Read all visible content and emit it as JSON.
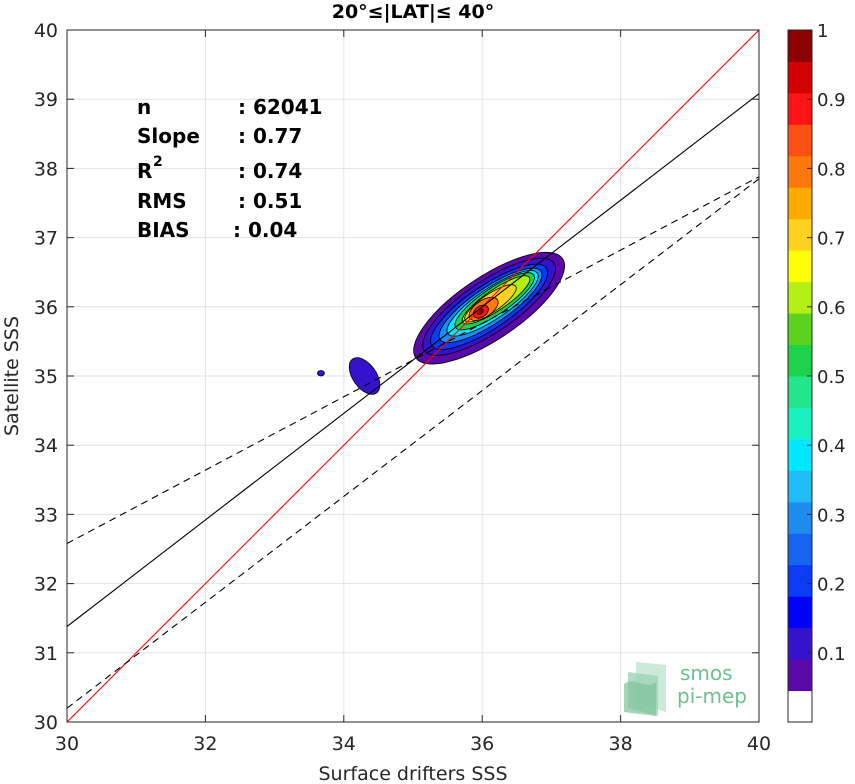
{
  "chart_data": {
    "type": "heatmap",
    "title": "20°≤|LAT|≤ 40°",
    "xlabel": "Surface drifters SSS",
    "ylabel": "Satellite SSS",
    "xlim": [
      30,
      40
    ],
    "ylim": [
      30,
      40
    ],
    "xticks": [
      "30",
      "32",
      "34",
      "36",
      "38",
      "40"
    ],
    "yticks": [
      "30",
      "31",
      "32",
      "33",
      "34",
      "35",
      "36",
      "37",
      "38",
      "39",
      "40"
    ],
    "grid": true,
    "stats": {
      "n": {
        "label": "n",
        "value": ": 62041"
      },
      "slope": {
        "label": "Slope",
        "value": ": 0.77"
      },
      "r2": {
        "label": "R",
        "sup": "2",
        "value": ": 0.74"
      },
      "rms": {
        "label": "RMS",
        "value": ": 0.51"
      },
      "bias": {
        "label": "BIAS",
        "value": ": 0.04"
      }
    },
    "lines": {
      "identity": {
        "color": "#ff0000",
        "y_at_30": 30,
        "slope": 1
      },
      "fit": {
        "color": "#000000",
        "y_at_30": 31.38,
        "slope": 0.77
      },
      "fit_upper": {
        "color": "#000000",
        "dashed": true,
        "y_at_30": 32.58,
        "slope": 0.53
      },
      "fit_lower": {
        "color": "#000000",
        "dashed": true,
        "y_at_30": 30.2,
        "slope": 0.765
      }
    },
    "density_peak": {
      "x": 35.98,
      "y": 35.93
    },
    "density_regions": [
      {
        "level": 0.05,
        "cx": 36.1,
        "cy": 35.98,
        "rx": 1.28,
        "ry": 0.45,
        "angle_deg": 34
      },
      {
        "level": 0.1,
        "cx": 36.1,
        "cy": 36.0,
        "rx": 1.13,
        "ry": 0.37,
        "angle_deg": 34
      },
      {
        "level": 0.2,
        "cx": 36.1,
        "cy": 36.0,
        "rx": 1.0,
        "ry": 0.31,
        "angle_deg": 34
      },
      {
        "level": 0.3,
        "cx": 36.12,
        "cy": 36.02,
        "rx": 0.88,
        "ry": 0.26,
        "angle_deg": 34
      },
      {
        "level": 0.4,
        "cx": 36.15,
        "cy": 36.05,
        "rx": 0.78,
        "ry": 0.22,
        "angle_deg": 34
      },
      {
        "level": 0.5,
        "cx": 36.18,
        "cy": 36.08,
        "rx": 0.68,
        "ry": 0.19,
        "angle_deg": 34
      },
      {
        "level": 0.6,
        "cx": 36.2,
        "cy": 36.1,
        "rx": 0.58,
        "ry": 0.15,
        "angle_deg": 34
      },
      {
        "level": 0.7,
        "cx": 36.12,
        "cy": 36.05,
        "rx": 0.44,
        "ry": 0.13,
        "angle_deg": 34
      },
      {
        "level": 0.8,
        "cx": 36.02,
        "cy": 35.97,
        "rx": 0.24,
        "ry": 0.12,
        "angle_deg": 34
      },
      {
        "level": 0.9,
        "cx": 35.98,
        "cy": 35.93,
        "rx": 0.12,
        "ry": 0.08,
        "angle_deg": 34
      },
      {
        "level": 0.97,
        "cx": 35.97,
        "cy": 35.93,
        "rx": 0.05,
        "ry": 0.035,
        "angle_deg": 34
      }
    ],
    "outliers": [
      {
        "level": 0.1,
        "cx": 34.3,
        "cy": 35.0,
        "rx": 0.3,
        "ry": 0.17,
        "angle_deg": -55
      },
      {
        "level": 0.1,
        "cx": 33.67,
        "cy": 35.04,
        "rx": 0.05,
        "ry": 0.04,
        "angle_deg": 0
      }
    ],
    "colorbar": {
      "ticks": [
        "0.1",
        "0.2",
        "0.3",
        "0.4",
        "0.5",
        "0.6",
        "0.7",
        "0.8",
        "0.9",
        "1"
      ],
      "colors": [
        "#ffffff",
        "#5a0aa8",
        "#3512cc",
        "#0000ff",
        "#0a3cf5",
        "#1664f0",
        "#1f8cf0",
        "#1fbcf5",
        "#00e8ff",
        "#19f0c0",
        "#22e68c",
        "#1ed24b",
        "#5ad21e",
        "#b4f014",
        "#ffff00",
        "#ffd21e",
        "#ffaa00",
        "#ff780a",
        "#ff5014",
        "#ff1414",
        "#d20000",
        "#8c0000"
      ]
    }
  },
  "logo": {
    "line1": "smos",
    "line2": "pi-mep"
  }
}
